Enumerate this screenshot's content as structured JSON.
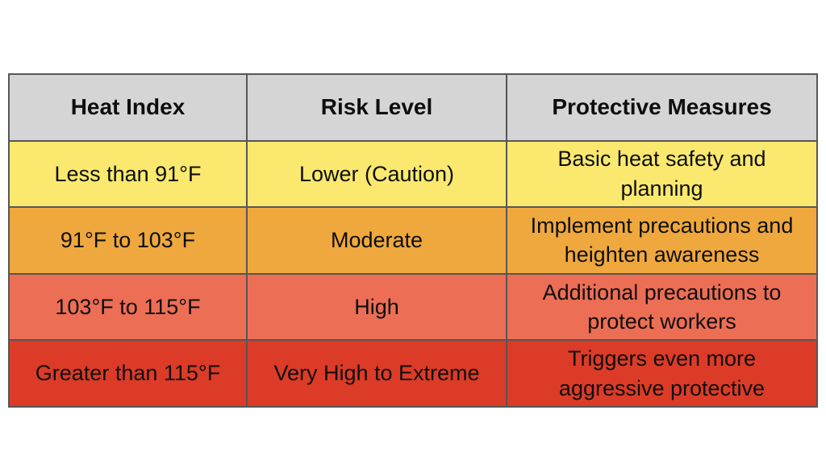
{
  "table": {
    "header_bg": "#d5d5d5",
    "border_color": "#565656",
    "headers": {
      "heat_index": "Heat Index",
      "risk_level": "Risk Level",
      "protective_measures": "Protective Measures"
    },
    "rows": [
      {
        "bg": "#fae96e",
        "heat_index": "Less than 91°F",
        "risk_level": "Lower (Caution)",
        "protective_measures": "Basic heat safety and planning"
      },
      {
        "bg": "#efa83d",
        "heat_index": "91°F to 103°F",
        "risk_level": "Moderate",
        "protective_measures": "Implement precautions and heighten awareness"
      },
      {
        "bg": "#ec6e55",
        "heat_index": "103°F to 115°F",
        "risk_level": "High",
        "protective_measures": "Additional precautions to protect workers"
      },
      {
        "bg": "#dc3b27",
        "heat_index": "Greater than 115°F",
        "risk_level": "Very High to Extreme",
        "protective_measures": "Triggers even more aggressive protective"
      }
    ]
  },
  "chart_data": {
    "type": "table",
    "columns": [
      "Heat Index",
      "Risk Level",
      "Protective Measures"
    ],
    "rows": [
      [
        "Less than 91°F",
        "Lower (Caution)",
        "Basic heat safety and planning"
      ],
      [
        "91°F to 103°F",
        "Moderate",
        "Implement precautions and heighten awareness"
      ],
      [
        "103°F to 115°F",
        "High",
        "Additional precautions to protect workers"
      ],
      [
        "Greater than 115°F",
        "Very High to Extreme",
        "Triggers even more aggressive protective"
      ]
    ],
    "row_colors": [
      "#fae96e",
      "#efa83d",
      "#ec6e55",
      "#dc3b27"
    ],
    "header_color": "#d5d5d5",
    "title": "",
    "legend": "none",
    "grid": "on"
  }
}
